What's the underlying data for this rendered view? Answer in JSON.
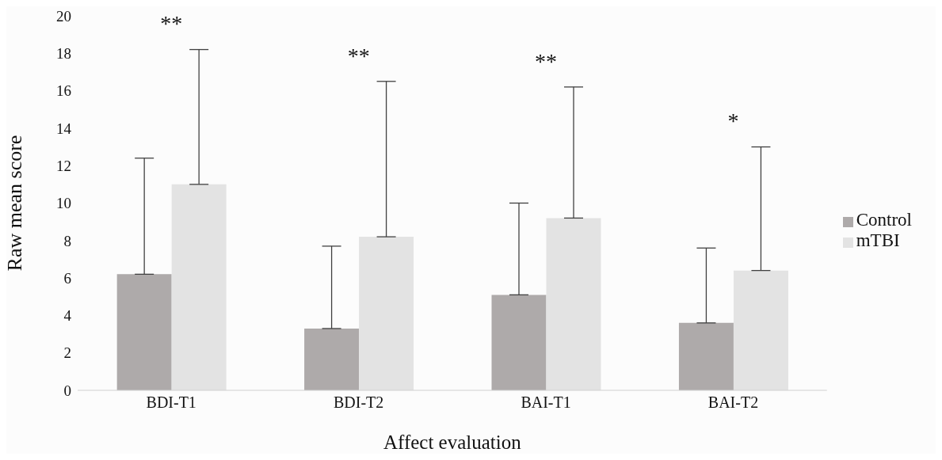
{
  "chart_data": {
    "type": "bar",
    "xlabel": "Affect evaluation",
    "ylabel": "Raw mean score",
    "categories": [
      "BDI-T1",
      "BDI-T2",
      "BAI-T1",
      "BAI-T2"
    ],
    "series": [
      {
        "name": "Control",
        "color": "#aeaaaa",
        "values": [
          6.2,
          3.3,
          5.1,
          3.6
        ],
        "errors": [
          [
            6.2,
            12.4
          ],
          [
            3.3,
            7.7
          ],
          [
            5.1,
            10.0
          ],
          [
            3.6,
            7.6
          ]
        ]
      },
      {
        "name": "mTBI",
        "color": "#e3e3e3",
        "values": [
          11.0,
          8.2,
          9.2,
          6.4
        ],
        "errors": [
          [
            11.0,
            18.2
          ],
          [
            8.2,
            16.5
          ],
          [
            9.2,
            16.2
          ],
          [
            6.4,
            13.0
          ]
        ]
      }
    ],
    "ylim": [
      0,
      20
    ],
    "yticks": [
      0,
      2,
      4,
      6,
      8,
      10,
      12,
      14,
      16,
      18,
      20
    ],
    "grid": false,
    "legend": "right",
    "annotations": [
      "**",
      "**",
      "**",
      "*"
    ]
  }
}
